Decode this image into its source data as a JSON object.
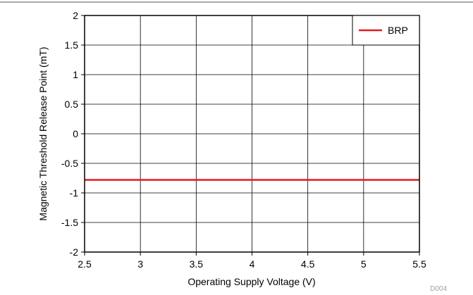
{
  "chart_data": {
    "type": "line",
    "title": "",
    "xlabel": "Operating Supply Voltage (V)",
    "ylabel": "Magnetic Threshold Release Point (mT)",
    "xlim": [
      2.5,
      5.5
    ],
    "ylim": [
      -2,
      2
    ],
    "x_ticks": [
      "2.5",
      "3",
      "3.5",
      "4",
      "4.5",
      "5",
      "5.5"
    ],
    "y_ticks": [
      "2",
      "1.5",
      "1",
      "0.5",
      "0",
      "-0.5",
      "-1",
      "-1.5",
      "-2"
    ],
    "x_tick_values": [
      2.5,
      3,
      3.5,
      4,
      4.5,
      5,
      5.5
    ],
    "y_tick_values": [
      2,
      1.5,
      1,
      0.5,
      0,
      -0.5,
      -1,
      -1.5,
      -2
    ],
    "grid": true,
    "legend_position": "top-right",
    "series": [
      {
        "name": "BRP",
        "color": "#e31a1c",
        "x": [
          2.5,
          3,
          3.5,
          4,
          4.5,
          5,
          5.5
        ],
        "y": [
          -0.78,
          -0.78,
          -0.78,
          -0.78,
          -0.78,
          -0.78,
          -0.78
        ]
      }
    ],
    "figure_id": "D004"
  }
}
